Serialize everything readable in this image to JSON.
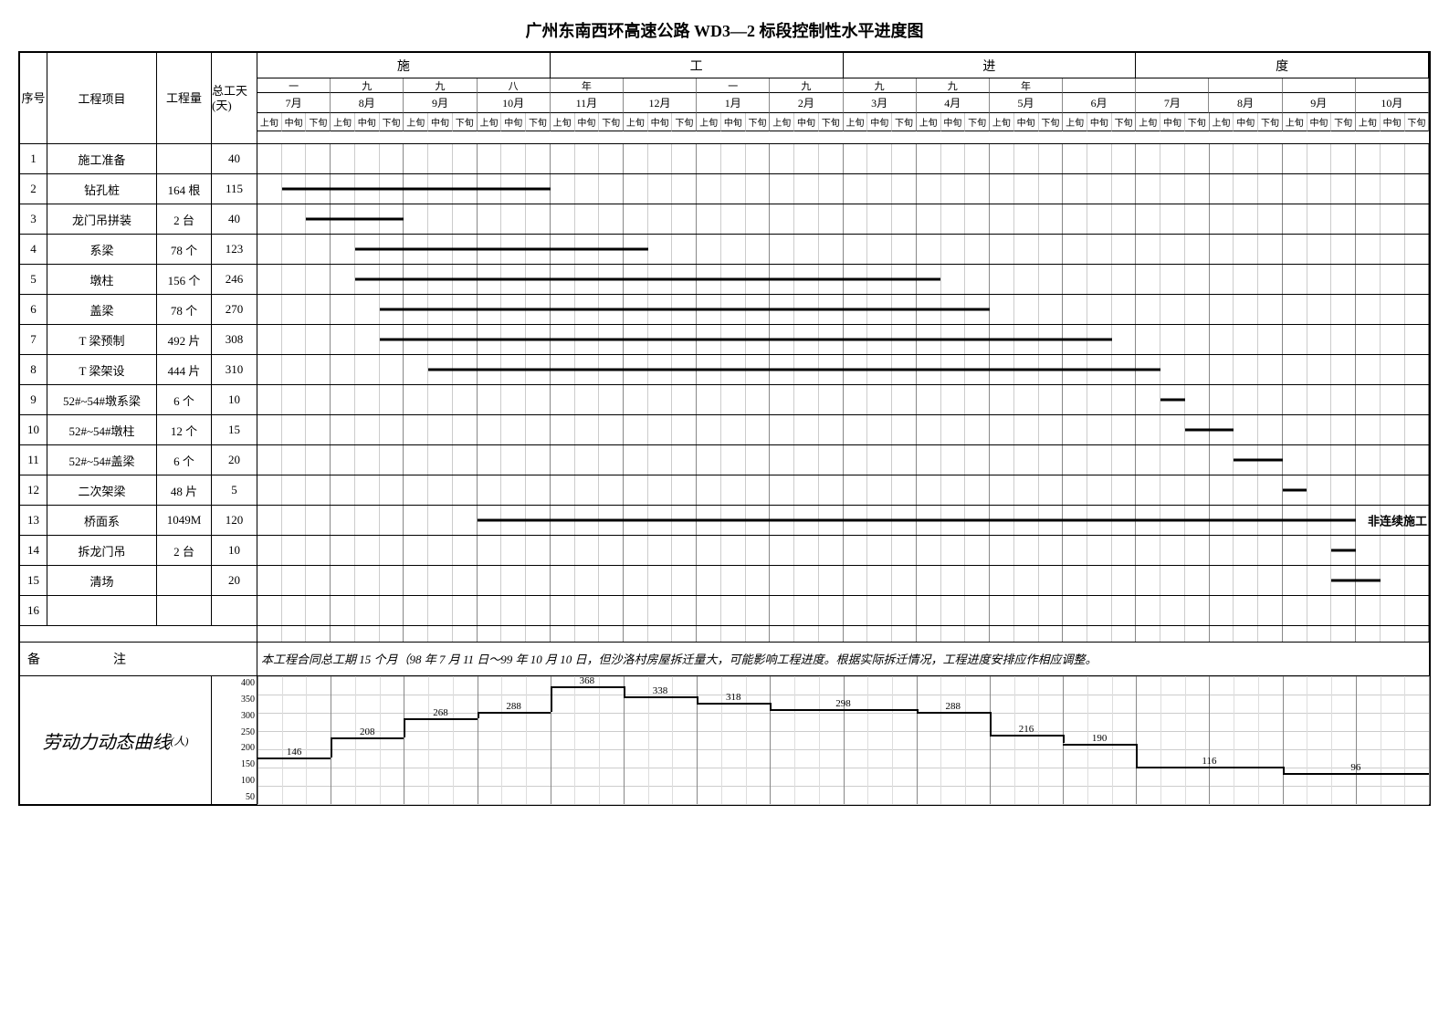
{
  "title": "广州东南西环高速公路 WD3—2 标段控制性水平进度图",
  "columns": {
    "seq": "序号",
    "name": "工程项目",
    "qty": "工程量",
    "days": "总工天(天)"
  },
  "timeline": {
    "top_segments": [
      "施",
      "工",
      "进",
      "度"
    ],
    "year_markers": [
      "一",
      "九",
      "九",
      "八",
      "年",
      "",
      "一",
      "九",
      "九",
      "九",
      "年"
    ],
    "months": [
      "7月",
      "8月",
      "9月",
      "10月",
      "11月",
      "12月",
      "1月",
      "2月",
      "3月",
      "4月",
      "5月",
      "6月",
      "7月",
      "8月",
      "9月",
      "10月"
    ],
    "sub_labels": [
      "上旬",
      "中旬",
      "下旬"
    ],
    "total_cols": 48
  },
  "rows": [
    {
      "seq": "1",
      "name": "施工准备",
      "qty": "",
      "days": "40",
      "bar": {
        "start": 0,
        "span": 0
      }
    },
    {
      "seq": "2",
      "name": "钻孔桩",
      "qty": "164 根",
      "days": "115",
      "bar": {
        "start": 1,
        "span": 11
      }
    },
    {
      "seq": "3",
      "name": "龙门吊拼装",
      "qty": "2 台",
      "days": "40",
      "bar": {
        "start": 2,
        "span": 4
      }
    },
    {
      "seq": "4",
      "name": "系梁",
      "qty": "78 个",
      "days": "123",
      "bar": {
        "start": 4,
        "span": 12
      }
    },
    {
      "seq": "5",
      "name": "墩柱",
      "qty": "156 个",
      "days": "246",
      "bar": {
        "start": 4,
        "span": 24
      }
    },
    {
      "seq": "6",
      "name": "盖梁",
      "qty": "78 个",
      "days": "270",
      "bar": {
        "start": 5,
        "span": 25
      }
    },
    {
      "seq": "7",
      "name": "T 梁预制",
      "qty": "492 片",
      "days": "308",
      "bar": {
        "start": 5,
        "span": 30
      }
    },
    {
      "seq": "8",
      "name": "T 梁架设",
      "qty": "444 片",
      "days": "310",
      "bar": {
        "start": 7,
        "span": 30
      }
    },
    {
      "seq": "9",
      "name": "52#~54#墩系梁",
      "qty": "6 个",
      "days": "10",
      "bar": {
        "start": 37,
        "span": 1
      }
    },
    {
      "seq": "10",
      "name": "52#~54#墩柱",
      "qty": "12 个",
      "days": "15",
      "bar": {
        "start": 38,
        "span": 2
      }
    },
    {
      "seq": "11",
      "name": "52#~54#盖梁",
      "qty": "6 个",
      "days": "20",
      "bar": {
        "start": 40,
        "span": 2
      }
    },
    {
      "seq": "12",
      "name": "二次架梁",
      "qty": "48 片",
      "days": "5",
      "bar": {
        "start": 42,
        "span": 1
      }
    },
    {
      "seq": "13",
      "name": "桥面系",
      "qty": "1049M",
      "days": "120",
      "bar": {
        "start": 9,
        "span": 36
      },
      "note": "非连续施工"
    },
    {
      "seq": "14",
      "name": "拆龙门吊",
      "qty": "2 台",
      "days": "10",
      "bar": {
        "start": 44,
        "span": 1
      }
    },
    {
      "seq": "15",
      "name": "清场",
      "qty": "",
      "days": "20",
      "bar": {
        "start": 44,
        "span": 2
      }
    },
    {
      "seq": "16",
      "name": "",
      "qty": "",
      "days": "",
      "bar": null
    }
  ],
  "remark": {
    "label_left": "备",
    "label_right": "注",
    "text": "本工程合同总工期 15 个月（98 年 7 月 11 日～99 年 10 月 10 日，但沙洛村房屋拆迁量大，可能影响工程进度。根据实际拆迁情况，工程进度安排应作相应调整。"
  },
  "labor": {
    "label": "劳动力动态曲线",
    "unit": "(人)",
    "y_ticks": [
      "400",
      "350",
      "300",
      "250",
      "200",
      "150",
      "100",
      "50"
    ],
    "y_max": 400,
    "points": [
      {
        "x": 0,
        "v": 146
      },
      {
        "x": 3,
        "v": 208
      },
      {
        "x": 6,
        "v": 268
      },
      {
        "x": 9,
        "v": 288
      },
      {
        "x": 12,
        "v": 368
      },
      {
        "x": 15,
        "v": 338
      },
      {
        "x": 18,
        "v": 318
      },
      {
        "x": 21,
        "v": 298
      },
      {
        "x": 27,
        "v": 288
      },
      {
        "x": 30,
        "v": 216
      },
      {
        "x": 33,
        "v": 190
      },
      {
        "x": 36,
        "v": 116
      },
      {
        "x": 42,
        "v": 96
      }
    ]
  },
  "colors": {
    "line": "#000000",
    "grid": "#cccccc",
    "grid2": "#888888",
    "bg": "#ffffff"
  }
}
